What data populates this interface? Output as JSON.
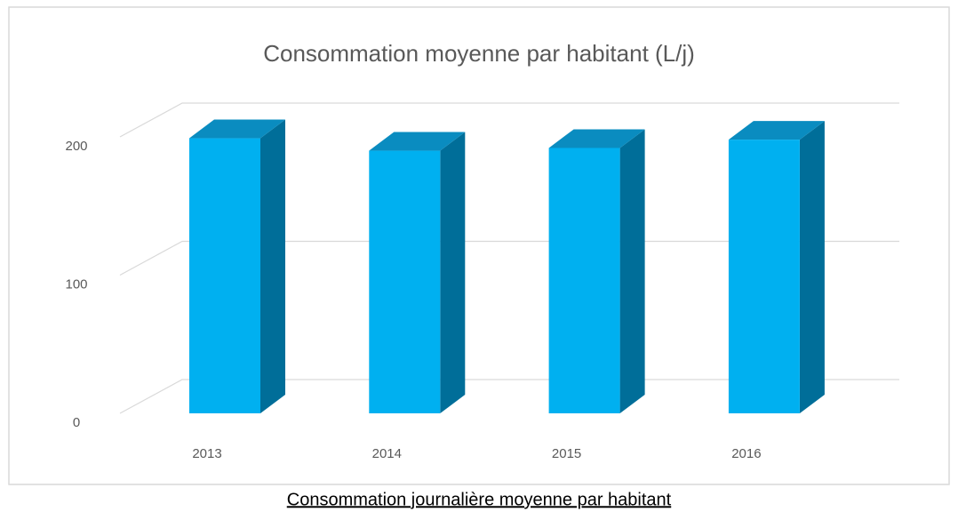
{
  "chart_data": {
    "type": "bar3d",
    "title": "Consommation moyenne par habitant (L/j)",
    "caption": "Consommation journalière moyenne par habitant",
    "categories": [
      "2013",
      "2014",
      "2015",
      "2016"
    ],
    "values": [
      199,
      190,
      192,
      198
    ],
    "color": "#00b0f0",
    "ylim": [
      0,
      200
    ],
    "yticks": [
      0,
      100,
      200
    ],
    "grid": true
  }
}
